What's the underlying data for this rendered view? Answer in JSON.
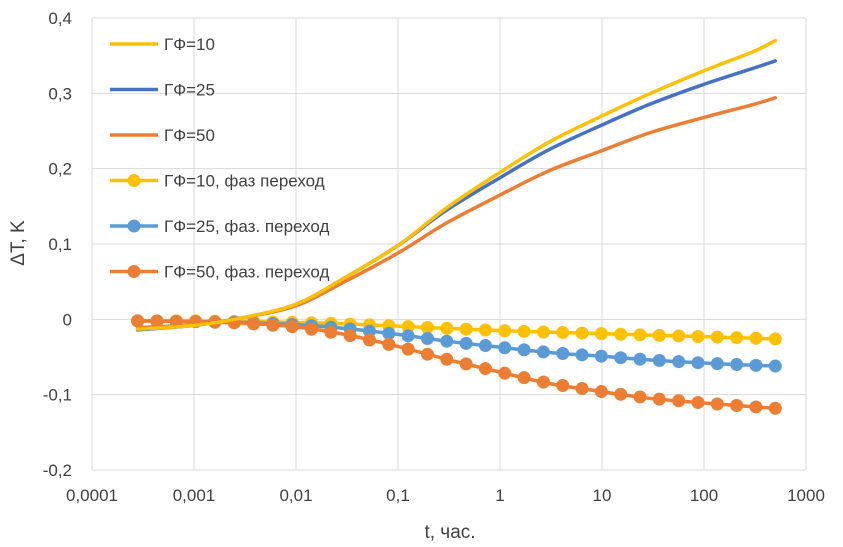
{
  "chart_data": {
    "type": "line",
    "title": "",
    "xlabel": "t, час.",
    "ylabel": "ΔT, K",
    "x_scale": "log",
    "xlim": [
      0.0001,
      1000
    ],
    "ylim": [
      -0.2,
      0.4
    ],
    "x_ticks": [
      "0,0001",
      "0,001",
      "0,01",
      "0,1",
      "1",
      "10",
      "100",
      "1000"
    ],
    "y_ticks": [
      "-0,2",
      "-0,1",
      "0",
      "0,1",
      "0,2",
      "0,3",
      "0,4"
    ],
    "grid": "vertical and horizontal major gridlines",
    "legend_position": "top-left inside plot",
    "series": [
      {
        "name": "ГФ=10",
        "color": "#FFC000",
        "marker": "none",
        "x": [
          0.00028,
          0.001,
          0.003,
          0.01,
          0.03,
          0.1,
          0.3,
          1,
          3,
          10,
          30,
          100,
          300,
          500
        ],
        "y": [
          -0.013,
          -0.008,
          0.002,
          0.02,
          0.055,
          0.098,
          0.148,
          0.195,
          0.235,
          0.27,
          0.3,
          0.33,
          0.355,
          0.37
        ]
      },
      {
        "name": "ГФ=25",
        "color": "#4472C4",
        "marker": "none",
        "x": [
          0.00028,
          0.001,
          0.003,
          0.01,
          0.03,
          0.1,
          0.3,
          1,
          3,
          10,
          30,
          100,
          300,
          500
        ],
        "y": [
          -0.014,
          -0.008,
          0.002,
          0.02,
          0.055,
          0.098,
          0.145,
          0.188,
          0.225,
          0.258,
          0.286,
          0.312,
          0.333,
          0.343
        ]
      },
      {
        "name": "ГФ=50",
        "color": "#ED7D31",
        "marker": "none",
        "x": [
          0.00028,
          0.001,
          0.003,
          0.01,
          0.03,
          0.1,
          0.3,
          1,
          3,
          10,
          30,
          100,
          300,
          500
        ],
        "y": [
          -0.011,
          -0.007,
          0.002,
          0.018,
          0.05,
          0.088,
          0.128,
          0.165,
          0.197,
          0.224,
          0.248,
          0.268,
          0.285,
          0.294
        ]
      },
      {
        "name": "ГФ=10, фаз переход",
        "color": "#FFC000",
        "marker": "circle",
        "x": [
          0.00028,
          0.001,
          0.003,
          0.01,
          0.03,
          0.1,
          0.3,
          1,
          3,
          10,
          30,
          100,
          300,
          500
        ],
        "y": [
          -0.002,
          -0.002,
          -0.003,
          -0.004,
          -0.006,
          -0.009,
          -0.012,
          -0.015,
          -0.017,
          -0.019,
          -0.021,
          -0.023,
          -0.025,
          -0.026
        ]
      },
      {
        "name": "ГФ=25, фаз. переход",
        "color": "#5B9BD5",
        "marker": "circle",
        "x": [
          0.00028,
          0.001,
          0.003,
          0.01,
          0.03,
          0.1,
          0.3,
          1,
          3,
          10,
          30,
          100,
          300,
          500
        ],
        "y": [
          -0.002,
          -0.003,
          -0.004,
          -0.007,
          -0.012,
          -0.02,
          -0.029,
          -0.037,
          -0.044,
          -0.049,
          -0.054,
          -0.058,
          -0.061,
          -0.062
        ]
      },
      {
        "name": "ГФ=50, фаз. переход",
        "color": "#ED7D31",
        "marker": "circle",
        "x": [
          0.00028,
          0.001,
          0.003,
          0.01,
          0.03,
          0.1,
          0.3,
          1,
          3,
          10,
          30,
          100,
          300,
          500
        ],
        "y": [
          -0.002,
          -0.003,
          -0.005,
          -0.01,
          -0.02,
          -0.036,
          -0.053,
          -0.07,
          -0.085,
          -0.096,
          -0.105,
          -0.111,
          -0.116,
          -0.118
        ]
      }
    ]
  }
}
